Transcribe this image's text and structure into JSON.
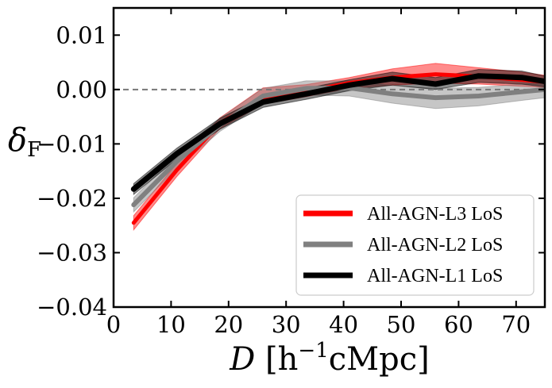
{
  "chart_data": {
    "type": "line",
    "xlabel": {
      "var": "D",
      "unit": "[h",
      "exp": "−1",
      "rest": "cMpc]"
    },
    "ylabel": {
      "var": "δ",
      "sub": "F"
    },
    "xlim": [
      0,
      75
    ],
    "ylim": [
      -0.04,
      0.015
    ],
    "xticks": [
      0,
      10,
      20,
      30,
      40,
      50,
      60,
      70
    ],
    "xtick_labels": [
      "0",
      "10",
      "20",
      "30",
      "40",
      "50",
      "60",
      "70"
    ],
    "yticks": [
      -0.04,
      -0.03,
      -0.02,
      -0.01,
      0.0,
      0.01
    ],
    "ytick_labels": [
      "−0.04",
      "−0.03",
      "−0.02",
      "−0.01",
      "0.00",
      "0.01"
    ],
    "x": [
      3.5,
      11,
      18.5,
      26,
      33.5,
      41,
      48.5,
      56,
      63.5,
      71,
      75
    ],
    "reference_line": {
      "y": 0.0,
      "style": "dashed",
      "color": "#777777"
    },
    "legend_position": "lower-right",
    "series": [
      {
        "name": "All-AGN-L3 LoS",
        "color": "#ff0000",
        "values": [
          -0.0245,
          -0.0148,
          -0.0062,
          -0.0015,
          -0.0003,
          0.0012,
          0.0022,
          0.0028,
          0.0024,
          0.0018,
          0.0014
        ],
        "lower": [
          -0.0258,
          -0.016,
          -0.0072,
          -0.0027,
          -0.0013,
          0.0002,
          0.0008,
          0.0012,
          0.001,
          0.0006,
          0.0004
        ],
        "upper": [
          -0.0232,
          -0.0136,
          -0.0052,
          0.0003,
          0.0009,
          0.0022,
          0.0038,
          0.0048,
          0.004,
          0.0032,
          0.0026
        ]
      },
      {
        "name": "All-AGN-L2 LoS",
        "color": "#808080",
        "values": [
          -0.0212,
          -0.0132,
          -0.0065,
          -0.0012,
          0.0002,
          0.0003,
          -0.0008,
          -0.0015,
          -0.0012,
          -0.0004,
          0.0
        ],
        "lower": [
          -0.0225,
          -0.0145,
          -0.0077,
          -0.0026,
          -0.001,
          -0.0012,
          -0.0025,
          -0.0035,
          -0.003,
          -0.002,
          -0.0015
        ],
        "upper": [
          -0.0199,
          -0.0119,
          -0.0053,
          0.0002,
          0.0016,
          0.0016,
          0.0007,
          0.0002,
          0.0004,
          0.001,
          0.0012
        ]
      },
      {
        "name": "All-AGN-L1 LoS",
        "color": "#000000",
        "values": [
          -0.0183,
          -0.0118,
          -0.0063,
          -0.0023,
          -0.0008,
          0.0008,
          0.002,
          0.001,
          0.0025,
          0.0022,
          0.0015
        ],
        "lower": [
          -0.0193,
          -0.0128,
          -0.0073,
          -0.0033,
          -0.0018,
          -0.0002,
          0.0008,
          0.0,
          0.0013,
          0.001,
          0.0005
        ],
        "upper": [
          -0.0173,
          -0.0108,
          -0.0053,
          -0.0013,
          0.0002,
          0.0018,
          0.0032,
          0.0022,
          0.0037,
          0.0034,
          0.0025
        ]
      }
    ]
  }
}
